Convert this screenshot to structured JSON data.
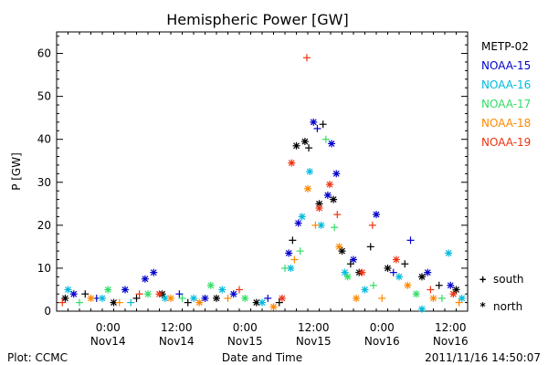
{
  "chart_data": {
    "type": "scatter",
    "title": "Hemispheric Power [GW]",
    "ylabel": "P [GW]",
    "xlabel": "Date and Time",
    "ylim": [
      0,
      65
    ],
    "xlim": [
      "2011-11-13 15:00",
      "2011-11-16 15:00"
    ],
    "y_ticks": [
      0,
      10,
      20,
      30,
      40,
      50,
      60
    ],
    "x_ticks": [
      {
        "line1": "0:00",
        "line2": "Nov14",
        "t": "2011-11-14 00:00"
      },
      {
        "line1": "12:00",
        "line2": "Nov14",
        "t": "2011-11-14 12:00"
      },
      {
        "line1": "0:00",
        "line2": "Nov15",
        "t": "2011-11-15 00:00"
      },
      {
        "line1": "12:00",
        "line2": "Nov15",
        "t": "2011-11-15 12:00"
      },
      {
        "line1": "0:00",
        "line2": "Nov16",
        "t": "2011-11-16 00:00"
      },
      {
        "line1": "12:00",
        "line2": "Nov16",
        "t": "2011-11-16 12:00"
      }
    ],
    "grid": false,
    "legend_position": "right",
    "hemisphere_legend": [
      {
        "symbol": "+",
        "label": "south"
      },
      {
        "symbol": "*",
        "label": "north"
      }
    ],
    "series": [
      {
        "name": "METP-02",
        "color": "#000000",
        "points": [
          {
            "x": "2011-11-13 16:30",
            "y": 3,
            "h": "n"
          },
          {
            "x": "2011-11-13 20:00",
            "y": 4,
            "h": "s"
          },
          {
            "x": "2011-11-14 01:00",
            "y": 2,
            "h": "n"
          },
          {
            "x": "2011-11-14 05:00",
            "y": 3,
            "h": "s"
          },
          {
            "x": "2011-11-14 09:30",
            "y": 4,
            "h": "n"
          },
          {
            "x": "2011-11-14 14:00",
            "y": 2,
            "h": "s"
          },
          {
            "x": "2011-11-14 19:00",
            "y": 3,
            "h": "n"
          },
          {
            "x": "2011-11-15 02:00",
            "y": 2,
            "h": "n"
          },
          {
            "x": "2011-11-15 06:00",
            "y": 2,
            "h": "s"
          },
          {
            "x": "2011-11-15 08:20",
            "y": 16.5,
            "h": "s"
          },
          {
            "x": "2011-11-15 09:00",
            "y": 38.5,
            "h": "n"
          },
          {
            "x": "2011-11-15 10:30",
            "y": 39.5,
            "h": "n"
          },
          {
            "x": "2011-11-15 11:10",
            "y": 38,
            "h": "s"
          },
          {
            "x": "2011-11-15 13:40",
            "y": 43.5,
            "h": "s"
          },
          {
            "x": "2011-11-15 13:00",
            "y": 25,
            "h": "n"
          },
          {
            "x": "2011-11-15 15:30",
            "y": 26,
            "h": "n"
          },
          {
            "x": "2011-11-15 17:00",
            "y": 14,
            "h": "n"
          },
          {
            "x": "2011-11-15 18:30",
            "y": 11,
            "h": "s"
          },
          {
            "x": "2011-11-15 20:00",
            "y": 9,
            "h": "n"
          },
          {
            "x": "2011-11-15 22:00",
            "y": 15,
            "h": "s"
          },
          {
            "x": "2011-11-16 01:00",
            "y": 10,
            "h": "n"
          },
          {
            "x": "2011-11-16 04:00",
            "y": 11,
            "h": "s"
          },
          {
            "x": "2011-11-16 07:00",
            "y": 8,
            "h": "n"
          },
          {
            "x": "2011-11-16 10:00",
            "y": 6,
            "h": "s"
          },
          {
            "x": "2011-11-16 13:00",
            "y": 5,
            "h": "n"
          }
        ]
      },
      {
        "name": "NOAA-15",
        "color": "#0000cc",
        "points": [
          {
            "x": "2011-11-13 18:00",
            "y": 4,
            "h": "n"
          },
          {
            "x": "2011-11-13 22:00",
            "y": 3,
            "h": "s"
          },
          {
            "x": "2011-11-14 03:00",
            "y": 5,
            "h": "n"
          },
          {
            "x": "2011-11-14 06:30",
            "y": 7.5,
            "h": "n"
          },
          {
            "x": "2011-11-14 08:00",
            "y": 9,
            "h": "n"
          },
          {
            "x": "2011-11-14 12:30",
            "y": 4,
            "h": "s"
          },
          {
            "x": "2011-11-14 17:00",
            "y": 3,
            "h": "n"
          },
          {
            "x": "2011-11-14 22:00",
            "y": 4,
            "h": "n"
          },
          {
            "x": "2011-11-15 04:00",
            "y": 3,
            "h": "s"
          },
          {
            "x": "2011-11-15 07:40",
            "y": 13.5,
            "h": "n"
          },
          {
            "x": "2011-11-15 09:20",
            "y": 20.5,
            "h": "n"
          },
          {
            "x": "2011-11-15 12:00",
            "y": 44,
            "h": "n"
          },
          {
            "x": "2011-11-15 12:40",
            "y": 42.5,
            "h": "s"
          },
          {
            "x": "2011-11-15 14:30",
            "y": 27,
            "h": "n"
          },
          {
            "x": "2011-11-15 15:10",
            "y": 39,
            "h": "n"
          },
          {
            "x": "2011-11-15 16:00",
            "y": 32,
            "h": "n"
          },
          {
            "x": "2011-11-15 19:00",
            "y": 12,
            "h": "n"
          },
          {
            "x": "2011-11-15 23:00",
            "y": 22.5,
            "h": "n"
          },
          {
            "x": "2011-11-16 02:00",
            "y": 9,
            "h": "s"
          },
          {
            "x": "2011-11-16 05:00",
            "y": 16.5,
            "h": "s"
          },
          {
            "x": "2011-11-16 08:00",
            "y": 9,
            "h": "n"
          },
          {
            "x": "2011-11-16 12:00",
            "y": 6,
            "h": "n"
          }
        ]
      },
      {
        "name": "NOAA-16",
        "color": "#00bbdd",
        "points": [
          {
            "x": "2011-11-13 17:00",
            "y": 5,
            "h": "n"
          },
          {
            "x": "2011-11-13 23:00",
            "y": 3,
            "h": "n"
          },
          {
            "x": "2011-11-14 04:00",
            "y": 2,
            "h": "s"
          },
          {
            "x": "2011-11-14 10:00",
            "y": 3,
            "h": "n"
          },
          {
            "x": "2011-11-14 15:00",
            "y": 3,
            "h": "n"
          },
          {
            "x": "2011-11-14 20:00",
            "y": 5,
            "h": "n"
          },
          {
            "x": "2011-11-15 03:00",
            "y": 2,
            "h": "n"
          },
          {
            "x": "2011-11-15 08:00",
            "y": 10,
            "h": "n"
          },
          {
            "x": "2011-11-15 10:00",
            "y": 22,
            "h": "n"
          },
          {
            "x": "2011-11-15 11:20",
            "y": 32.5,
            "h": "n"
          },
          {
            "x": "2011-11-15 13:20",
            "y": 20,
            "h": "n"
          },
          {
            "x": "2011-11-15 17:30",
            "y": 9,
            "h": "n"
          },
          {
            "x": "2011-11-15 21:00",
            "y": 5,
            "h": "n"
          },
          {
            "x": "2011-11-16 03:00",
            "y": 8,
            "h": "n"
          },
          {
            "x": "2011-11-16 07:00",
            "y": 0.5,
            "h": "n"
          },
          {
            "x": "2011-11-16 11:40",
            "y": 13.5,
            "h": "n"
          },
          {
            "x": "2011-11-16 14:00",
            "y": 3,
            "h": "n"
          }
        ]
      },
      {
        "name": "NOAA-17",
        "color": "#33dd66",
        "points": [
          {
            "x": "2011-11-13 19:00",
            "y": 2,
            "h": "s"
          },
          {
            "x": "2011-11-14 00:00",
            "y": 5,
            "h": "n"
          },
          {
            "x": "2011-11-14 07:00",
            "y": 4,
            "h": "n"
          },
          {
            "x": "2011-11-14 13:00",
            "y": 3,
            "h": "s"
          },
          {
            "x": "2011-11-14 18:00",
            "y": 6,
            "h": "n"
          },
          {
            "x": "2011-11-15 00:00",
            "y": 3,
            "h": "n"
          },
          {
            "x": "2011-11-15 07:00",
            "y": 10,
            "h": "s"
          },
          {
            "x": "2011-11-15 09:40",
            "y": 14,
            "h": "s"
          },
          {
            "x": "2011-11-15 14:10",
            "y": 40,
            "h": "s"
          },
          {
            "x": "2011-11-15 15:40",
            "y": 19.5,
            "h": "s"
          },
          {
            "x": "2011-11-15 18:00",
            "y": 8,
            "h": "n"
          },
          {
            "x": "2011-11-15 22:30",
            "y": 6,
            "h": "s"
          },
          {
            "x": "2011-11-16 06:00",
            "y": 4,
            "h": "n"
          },
          {
            "x": "2011-11-16 10:30",
            "y": 3,
            "h": "s"
          }
        ]
      },
      {
        "name": "NOAA-18",
        "color": "#ff8800",
        "points": [
          {
            "x": "2011-11-13 21:00",
            "y": 3,
            "h": "n"
          },
          {
            "x": "2011-11-14 02:00",
            "y": 2,
            "h": "s"
          },
          {
            "x": "2011-11-14 11:00",
            "y": 3,
            "h": "n"
          },
          {
            "x": "2011-11-14 16:00",
            "y": 2,
            "h": "n"
          },
          {
            "x": "2011-11-14 21:00",
            "y": 3,
            "h": "s"
          },
          {
            "x": "2011-11-15 05:00",
            "y": 1,
            "h": "n"
          },
          {
            "x": "2011-11-15 08:40",
            "y": 12,
            "h": "s"
          },
          {
            "x": "2011-11-15 11:00",
            "y": 28.5,
            "h": "n"
          },
          {
            "x": "2011-11-15 12:20",
            "y": 20,
            "h": "s"
          },
          {
            "x": "2011-11-15 16:30",
            "y": 15,
            "h": "n"
          },
          {
            "x": "2011-11-15 19:30",
            "y": 3,
            "h": "n"
          },
          {
            "x": "2011-11-16 00:00",
            "y": 3,
            "h": "s"
          },
          {
            "x": "2011-11-16 04:30",
            "y": 6,
            "h": "n"
          },
          {
            "x": "2011-11-16 09:00",
            "y": 3,
            "h": "n"
          },
          {
            "x": "2011-11-16 13:30",
            "y": 2,
            "h": "s"
          }
        ]
      },
      {
        "name": "NOAA-19",
        "color": "#ee3311",
        "points": [
          {
            "x": "2011-11-13 16:00",
            "y": 2,
            "h": "s"
          },
          {
            "x": "2011-11-14 05:30",
            "y": 4,
            "h": "s"
          },
          {
            "x": "2011-11-14 09:00",
            "y": 4,
            "h": "n"
          },
          {
            "x": "2011-11-14 23:00",
            "y": 5,
            "h": "s"
          },
          {
            "x": "2011-11-15 06:30",
            "y": 3,
            "h": "n"
          },
          {
            "x": "2011-11-15 08:10",
            "y": 34.5,
            "h": "n"
          },
          {
            "x": "2011-11-15 10:50",
            "y": 59,
            "h": "s"
          },
          {
            "x": "2011-11-15 13:00",
            "y": 24,
            "h": "n"
          },
          {
            "x": "2011-11-15 14:50",
            "y": 29.5,
            "h": "n"
          },
          {
            "x": "2011-11-15 16:10",
            "y": 22.5,
            "h": "s"
          },
          {
            "x": "2011-11-15 20:30",
            "y": 9,
            "h": "n"
          },
          {
            "x": "2011-11-15 22:20",
            "y": 20,
            "h": "s"
          },
          {
            "x": "2011-11-16 02:30",
            "y": 12,
            "h": "n"
          },
          {
            "x": "2011-11-16 08:30",
            "y": 5,
            "h": "s"
          },
          {
            "x": "2011-11-16 12:30",
            "y": 4,
            "h": "n"
          }
        ]
      }
    ]
  },
  "footer": {
    "left": "Plot: CCMC",
    "center": "Date and Time",
    "right": "2011/11/16 14:50:07"
  }
}
